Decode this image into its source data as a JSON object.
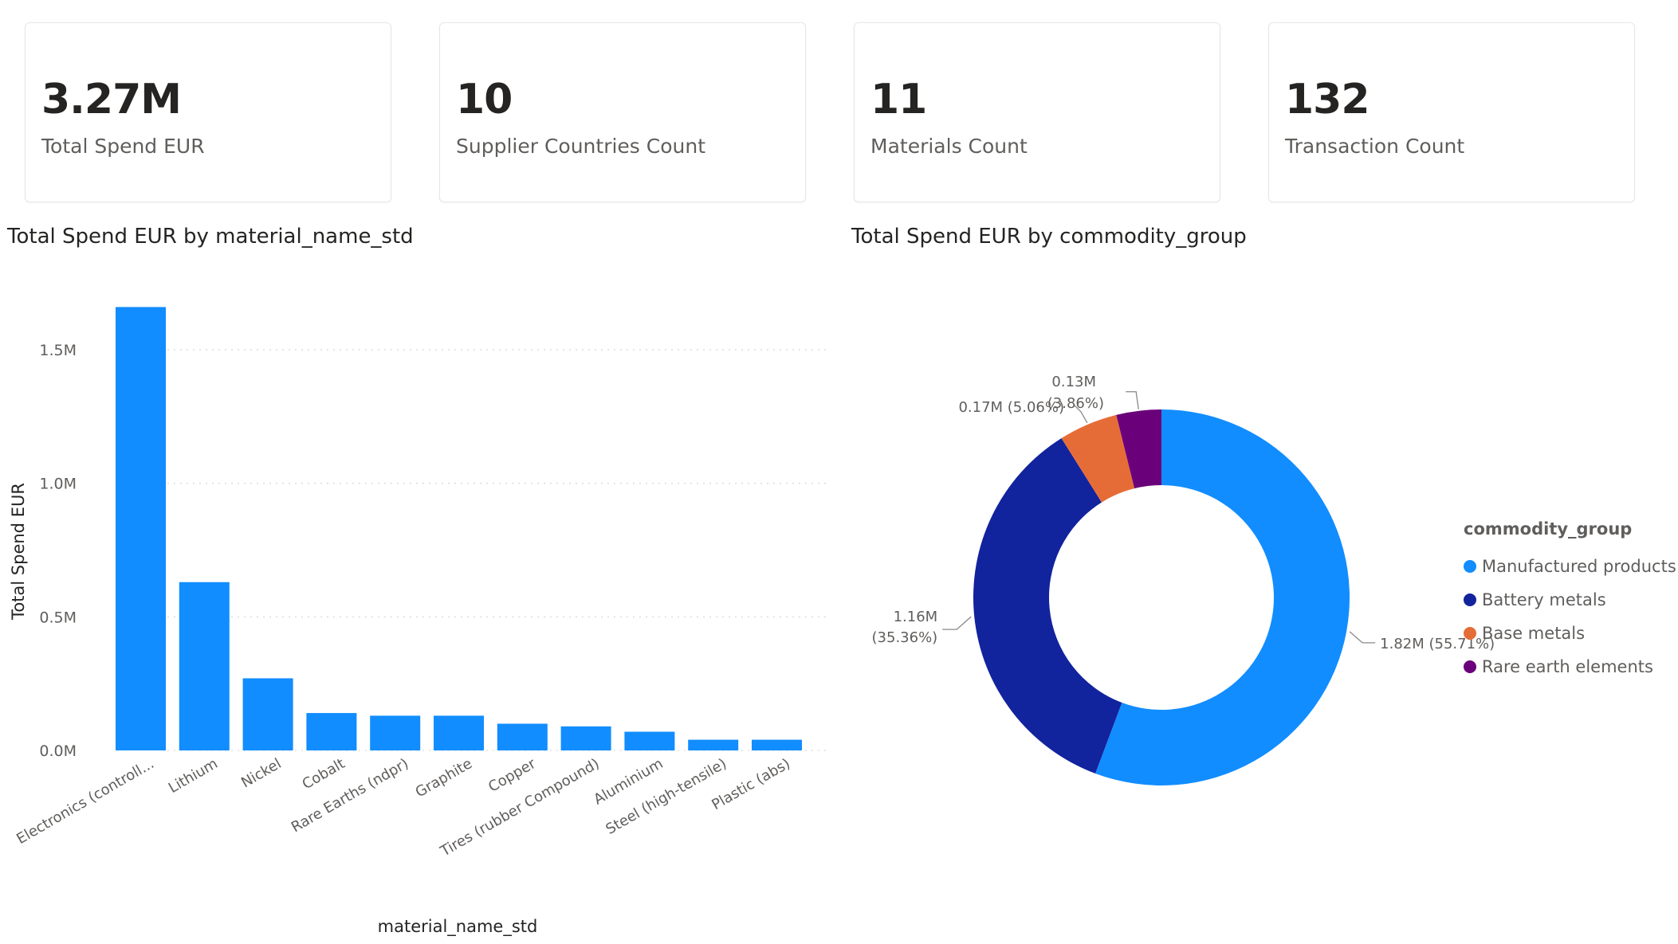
{
  "cards": [
    {
      "value": "3.27M",
      "label": "Total Spend EUR"
    },
    {
      "value": "10",
      "label": "Supplier Countries Count"
    },
    {
      "value": "11",
      "label": "Materials Count"
    },
    {
      "value": "132",
      "label": "Transaction Count"
    }
  ],
  "bar_visual": {
    "title": "Total Spend EUR by material_name_std"
  },
  "donut_visual": {
    "title": "Total Spend EUR by commodity_group"
  },
  "legend": {
    "title": "commodity_group"
  },
  "colors": {
    "bar": "#118DFF"
  },
  "chart_data": [
    {
      "type": "bar",
      "title": "Total Spend EUR by material_name_std",
      "xlabel": "material_name_std",
      "ylabel": "Total Spend EUR",
      "categories": [
        "Electronics (controll...",
        "Lithium",
        "Nickel",
        "Cobalt",
        "Rare Earths (ndpr)",
        "Graphite",
        "Copper",
        "Tires (rubber Compound)",
        "Aluminium",
        "Steel (high-tensile)",
        "Plastic (abs)"
      ],
      "values": [
        1.66,
        0.63,
        0.27,
        0.14,
        0.13,
        0.13,
        0.1,
        0.09,
        0.07,
        0.04,
        0.04
      ],
      "value_unit": "M EUR",
      "yticks": [
        0,
        0.5,
        1.0,
        1.5
      ],
      "ytick_labels": [
        "0.0M",
        "0.5M",
        "1.0M",
        "1.5M"
      ],
      "ylim": [
        0,
        1.7
      ],
      "grid": true
    },
    {
      "type": "pie",
      "subtype": "donut",
      "title": "Total Spend EUR by commodity_group",
      "legend_title": "commodity_group",
      "legend_position": "right",
      "slices": [
        {
          "name": "Manufactured products",
          "value": 1.82,
          "percent": 55.71,
          "label": "1.82M (55.71%)",
          "color": "#118DFF"
        },
        {
          "name": "Battery metals",
          "value": 1.16,
          "percent": 35.36,
          "label_lines": [
            "1.16M",
            "(35.36%)"
          ],
          "color": "#12239E"
        },
        {
          "name": "Base metals",
          "value": 0.17,
          "percent": 5.06,
          "label": "0.17M (5.06%)",
          "color": "#E66C37"
        },
        {
          "name": "Rare earth elements",
          "value": 0.13,
          "percent": 3.86,
          "label_lines": [
            "0.13M",
            "(3.86%)"
          ],
          "color": "#6B007B"
        }
      ]
    }
  ]
}
